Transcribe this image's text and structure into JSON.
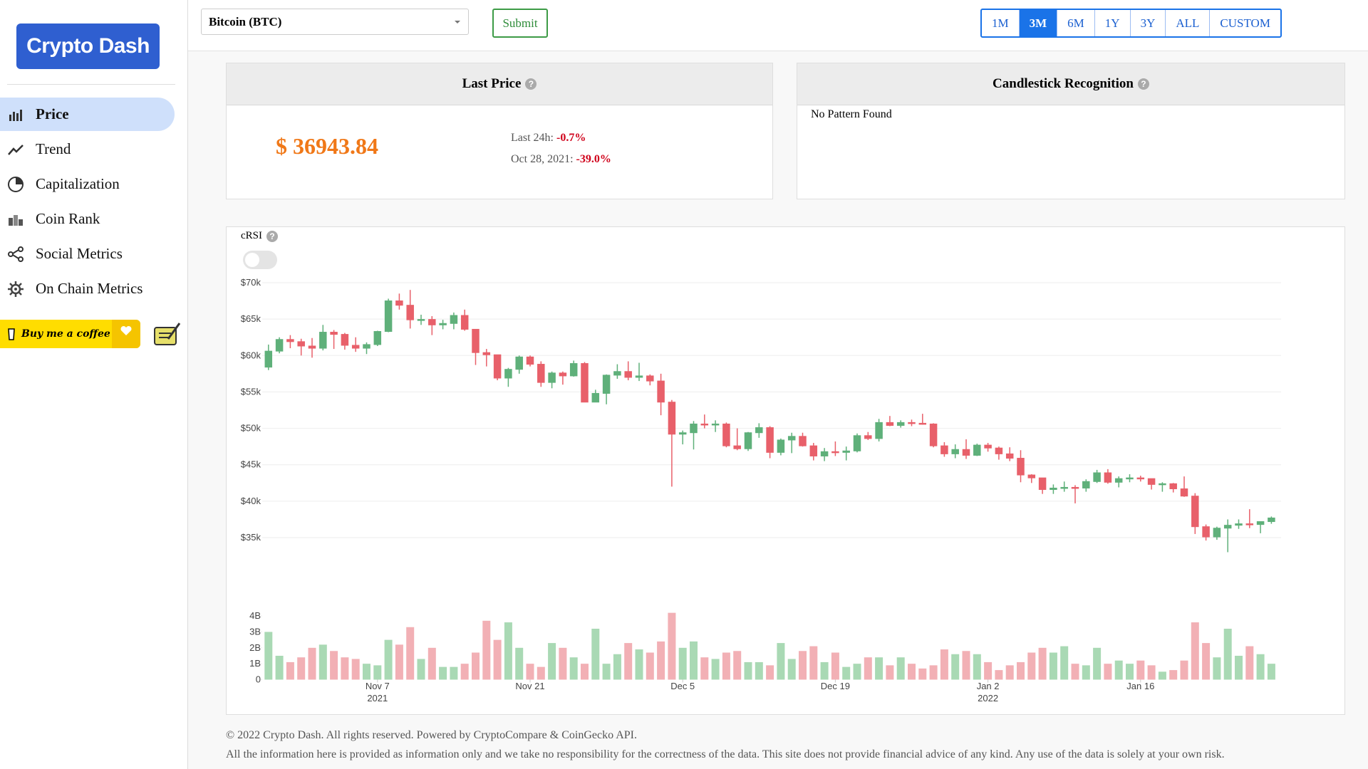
{
  "sidebar": {
    "logo": "Crypto Dash",
    "nav": [
      "Price",
      "Trend",
      "Capitalization",
      "Coin Rank",
      "Social Metrics",
      "On Chain Metrics"
    ],
    "active": "Price",
    "coffee": "Buy me a coffee"
  },
  "header": {
    "coin": "Bitcoin (BTC)",
    "submit": "Submit",
    "ranges": [
      "1M",
      "3M",
      "6M",
      "1Y",
      "3Y",
      "ALL",
      "CUSTOM"
    ],
    "active_range": "3M"
  },
  "help_icon": "?",
  "last_price": {
    "title": "Last Price",
    "price": "$ 36943.84",
    "changes": [
      {
        "label": "Last 24h:",
        "value": "-0.7%"
      },
      {
        "label": "Oct 28, 2021:",
        "value": "-39.0%"
      }
    ]
  },
  "pattern": {
    "title": "Candlestick Recognition",
    "text": "No Pattern Found"
  },
  "crsi": "cRSI",
  "chart_data": {
    "type": "candlestick",
    "x": [
      "2021-10-28",
      "2021-10-29",
      "2021-10-30",
      "2021-10-31",
      "2021-11-01",
      "2021-11-02",
      "2021-11-03",
      "2021-11-04",
      "2021-11-05",
      "2021-11-06",
      "2021-11-07",
      "2021-11-08",
      "2021-11-09",
      "2021-11-10",
      "2021-11-11",
      "2021-11-12",
      "2021-11-13",
      "2021-11-14",
      "2021-11-15",
      "2021-11-16",
      "2021-11-17",
      "2021-11-18",
      "2021-11-19",
      "2021-11-20",
      "2021-11-21",
      "2021-11-22",
      "2021-11-23",
      "2021-11-24",
      "2021-11-25",
      "2021-11-26",
      "2021-11-27",
      "2021-11-28",
      "2021-11-29",
      "2021-11-30",
      "2021-12-01",
      "2021-12-02",
      "2021-12-03",
      "2021-12-04",
      "2021-12-05",
      "2021-12-06",
      "2021-12-07",
      "2021-12-08",
      "2021-12-09",
      "2021-12-10",
      "2021-12-11",
      "2021-12-12",
      "2021-12-13",
      "2021-12-14",
      "2021-12-15",
      "2021-12-16",
      "2021-12-17",
      "2021-12-18",
      "2021-12-19",
      "2021-12-20",
      "2021-12-21",
      "2021-12-22",
      "2021-12-23",
      "2021-12-24",
      "2021-12-25",
      "2021-12-26",
      "2021-12-27",
      "2021-12-28",
      "2021-12-29",
      "2021-12-30",
      "2021-12-31",
      "2022-01-01",
      "2022-01-02",
      "2022-01-03",
      "2022-01-04",
      "2022-01-05",
      "2022-01-06",
      "2022-01-07",
      "2022-01-08",
      "2022-01-09",
      "2022-01-10",
      "2022-01-11",
      "2022-01-12",
      "2022-01-13",
      "2022-01-14",
      "2022-01-15",
      "2022-01-16",
      "2022-01-17",
      "2022-01-18",
      "2022-01-19",
      "2022-01-20",
      "2022-01-21",
      "2022-01-22",
      "2022-01-23",
      "2022-01-24",
      "2022-01-25",
      "2022-01-26",
      "2022-01-27",
      "2022-01-28"
    ],
    "open": [
      58400,
      60600,
      62200,
      61900,
      61300,
      61000,
      63200,
      62900,
      61400,
      61000,
      61500,
      63300,
      67500,
      66900,
      64900,
      64950,
      64200,
      64400,
      65500,
      63600,
      60400,
      60100,
      56900,
      58100,
      59800,
      58800,
      56300,
      57600,
      57200,
      58900,
      53600,
      54800,
      57300,
      57800,
      57000,
      57200,
      56500,
      53600,
      49200,
      49400,
      50600,
      50500,
      50600,
      47600,
      47200,
      49400,
      50100,
      46700,
      48400,
      48900,
      47600,
      46200,
      46800,
      46700,
      46900,
      49000,
      48600,
      50800,
      50400,
      50800,
      50700,
      50600,
      47600,
      46500,
      47100,
      46300,
      47700,
      47300,
      46500,
      45900,
      43600,
      43200,
      41600,
      41800,
      41900,
      41800,
      42700,
      43900,
      42600,
      43100,
      43200,
      43100,
      42300,
      42400,
      41700,
      40700,
      36500,
      35100,
      36300,
      36700,
      36900,
      36800,
      37200
    ],
    "high": [
      61500,
      62500,
      62800,
      62300,
      62400,
      64200,
      63500,
      63100,
      62500,
      61800,
      63400,
      67800,
      68500,
      69000,
      65600,
      65400,
      64900,
      65900,
      66300,
      63600,
      60900,
      60100,
      58300,
      60000,
      60000,
      59200,
      57800,
      57800,
      59300,
      59100,
      55300,
      57400,
      58800,
      59200,
      59000,
      57400,
      57500,
      53900,
      49700,
      51000,
      51900,
      51100,
      50800,
      50000,
      49500,
      50700,
      50300,
      48600,
      49400,
      49400,
      48000,
      47300,
      48200,
      47500,
      49300,
      49500,
      51300,
      51700,
      51100,
      51200,
      52000,
      50700,
      48100,
      47800,
      48500,
      47900,
      48000,
      47500,
      47400,
      47000,
      43700,
      43100,
      42300,
      42700,
      42200,
      43000,
      44300,
      44400,
      43400,
      43700,
      43500,
      43100,
      42600,
      42500,
      43400,
      41100,
      36800,
      36500,
      37500,
      37500,
      38900,
      37200,
      37900
    ],
    "low": [
      58000,
      60300,
      61000,
      60000,
      59700,
      60700,
      60900,
      60800,
      60500,
      60200,
      61300,
      63200,
      66300,
      63700,
      64200,
      62800,
      63600,
      63600,
      63400,
      58700,
      58500,
      56600,
      55700,
      57500,
      58500,
      55700,
      55500,
      56000,
      57100,
      53600,
      53600,
      53300,
      56800,
      56600,
      56500,
      55900,
      51800,
      42000,
      47800,
      47100,
      50000,
      49500,
      47400,
      47000,
      46900,
      48700,
      45900,
      46300,
      46600,
      47500,
      45600,
      45500,
      46200,
      45600,
      46700,
      48400,
      48200,
      50300,
      50100,
      50300,
      50500,
      47400,
      46100,
      45900,
      45800,
      46200,
      46800,
      45700,
      45500,
      42600,
      42500,
      41000,
      41000,
      41300,
      39700,
      41300,
      42500,
      42400,
      41900,
      42600,
      42700,
      41600,
      41300,
      41200,
      40600,
      35500,
      34600,
      34700,
      33000,
      36200,
      36300,
      35600,
      36900
    ],
    "close": [
      60600,
      62200,
      61900,
      61300,
      61000,
      63200,
      62900,
      61400,
      61000,
      61500,
      63300,
      67500,
      66900,
      64900,
      64950,
      64200,
      64400,
      65500,
      63600,
      60400,
      60100,
      56900,
      58100,
      59800,
      58800,
      56300,
      57600,
      57200,
      58900,
      53600,
      54800,
      57300,
      57800,
      57000,
      57200,
      56500,
      53600,
      49200,
      49400,
      50600,
      50500,
      50600,
      47600,
      47200,
      49400,
      50100,
      46700,
      48400,
      48900,
      47600,
      46200,
      46800,
      46700,
      46900,
      49000,
      48600,
      50800,
      50400,
      50800,
      50700,
      50600,
      47600,
      46500,
      47100,
      46300,
      47700,
      47300,
      46500,
      45900,
      43600,
      43200,
      41600,
      41800,
      41900,
      41800,
      42700,
      43900,
      42600,
      43100,
      43200,
      43100,
      42300,
      42400,
      41700,
      40700,
      36500,
      35100,
      36300,
      36700,
      36900,
      36800,
      37200,
      37700
    ],
    "volume": [
      3000000000.0,
      1500000000.0,
      1100000000.0,
      1400000000.0,
      2000000000.0,
      2200000000.0,
      1800000000.0,
      1400000000.0,
      1300000000.0,
      1000000000.0,
      900000000.0,
      2500000000.0,
      2200000000.0,
      3300000000.0,
      1300000000.0,
      2000000000.0,
      800000000.0,
      800000000.0,
      1000000000.0,
      1700000000.0,
      3700000000.0,
      2500000000.0,
      3600000000.0,
      2000000000.0,
      1000000000.0,
      800000000.0,
      2300000000.0,
      2000000000.0,
      1400000000.0,
      1000000000.0,
      3200000000.0,
      1000000000.0,
      1600000000.0,
      2300000000.0,
      1900000000.0,
      1700000000.0,
      2400000000.0,
      4200000000.0,
      2000000000.0,
      2400000000.0,
      1400000000.0,
      1300000000.0,
      1700000000.0,
      1800000000.0,
      1100000000.0,
      1100000000.0,
      900000000.0,
      2300000000.0,
      1300000000.0,
      1800000000.0,
      2100000000.0,
      1100000000.0,
      1700000000.0,
      800000000.0,
      1000000000.0,
      1400000000.0,
      1400000000.0,
      900000000.0,
      1400000000.0,
      1000000000.0,
      700000000.0,
      900000000.0,
      1900000000.0,
      1600000000.0,
      1800000000.0,
      1600000000.0,
      1100000000.0,
      600000000.0,
      900000000.0,
      1100000000.0,
      1700000000.0,
      2000000000.0,
      1700000000.0,
      2100000000.0,
      1000000000.0,
      900000000.0,
      2000000000.0,
      1000000000.0,
      1200000000.0,
      1000000000.0,
      1200000000.0,
      900000000.0,
      500000000.0,
      600000000.0,
      1200000000.0,
      3600000000.0,
      2300000000.0,
      1400000000.0,
      3200000000.0,
      1500000000.0,
      2100000000.0,
      1600000000.0,
      1000000000.0
    ],
    "volume_axis": "y2",
    "increasing_color": "#5fb07a",
    "decreasing_color": "#e8606a",
    "volume_increasing_color": "#a9d9b4",
    "volume_decreasing_color": "#f2b0b5",
    "xlim": [
      "2021-10-27",
      "2022-01-29"
    ],
    "xticks": [
      {
        "value": "2021-11-07",
        "label": "Nov 7",
        "year": "2021"
      },
      {
        "value": "2021-11-21",
        "label": "Nov 21"
      },
      {
        "value": "2021-12-05",
        "label": "Dec 5"
      },
      {
        "value": "2021-12-19",
        "label": "Dec 19"
      },
      {
        "value": "2022-01-02",
        "label": "Jan 2",
        "year": "2022"
      },
      {
        "value": "2022-01-16",
        "label": "Jan 16"
      }
    ],
    "ylim": [
      30000,
      72000
    ],
    "yticks": [
      {
        "value": 35000,
        "label": "$35k"
      },
      {
        "value": 40000,
        "label": "$40k"
      },
      {
        "value": 45000,
        "label": "$45k"
      },
      {
        "value": 50000,
        "label": "$50k"
      },
      {
        "value": 55000,
        "label": "$55k"
      },
      {
        "value": 60000,
        "label": "$60k"
      },
      {
        "value": 65000,
        "label": "$65k"
      },
      {
        "value": 70000,
        "label": "$70k"
      }
    ],
    "y2lim": [
      0,
      4300000000.0
    ],
    "y2ticks": [
      0,
      {
        "value": 1000000000.0,
        "label": "1B"
      },
      {
        "value": 2000000000.0,
        "label": "2B"
      },
      {
        "value": 3000000000.0,
        "label": "3B"
      },
      {
        "value": 4000000000.0,
        "label": "4B"
      }
    ],
    "grid": true
  },
  "footer": [
    "© 2022 Crypto Dash. All rights reserved. Powered by CryptoCompare & CoinGecko API.",
    "All the information here is provided as information only and we take no responsibility for the correctness of the data. This site does not provide financial advice of any kind. Any use of the data is solely at your own risk."
  ]
}
